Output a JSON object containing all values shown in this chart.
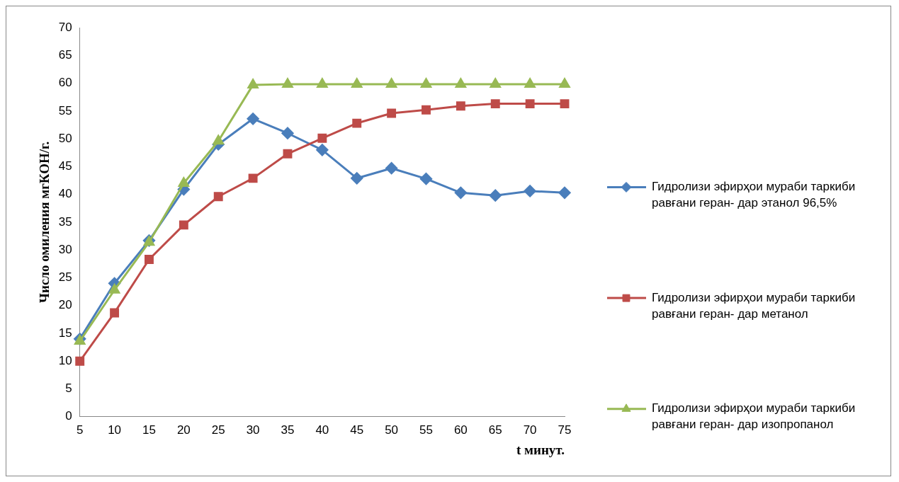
{
  "chart_data": {
    "type": "line",
    "ylabel": "Число омиления мгКОН/г.",
    "xlabel": "t минут.",
    "categories": [
      "5",
      "10",
      "15",
      "20",
      "25",
      "30",
      "35",
      "40",
      "45",
      "50",
      "55",
      "60",
      "65",
      "70",
      "75"
    ],
    "ylim": [
      0,
      70
    ],
    "yticks": [
      0,
      5,
      10,
      15,
      20,
      25,
      30,
      35,
      40,
      45,
      50,
      55,
      60,
      65,
      70
    ],
    "grid": false,
    "legend": "right",
    "series": [
      {
        "name": "Гидролизи эфирҳои мураби таркиби равғани геран- дар этанол 96,5%",
        "color": "#4a7ebb",
        "marker": "diamond",
        "values": [
          14,
          24,
          31.7,
          40.9,
          49,
          53.6,
          51,
          48,
          42.9,
          44.7,
          42.8,
          40.3,
          39.8,
          40.6,
          40.3
        ]
      },
      {
        "name": "Гидролизи эфирҳои мураби таркиби равғани геран- дар метанол",
        "color": "#be4b48",
        "marker": "square",
        "values": [
          10,
          18.7,
          28.3,
          34.5,
          39.6,
          42.9,
          47.3,
          50.1,
          52.8,
          54.6,
          55.2,
          55.9,
          56.3,
          56.3,
          56.3
        ]
      },
      {
        "name": "Гидролизи эфирҳои мураби таркиби равғани геран- дар изопропанол",
        "color": "#98b954",
        "marker": "triangle",
        "values": [
          13.6,
          22.8,
          31.4,
          42,
          49.6,
          59.7,
          59.8,
          59.8,
          59.8,
          59.8,
          59.8,
          59.8,
          59.8,
          59.8,
          59.8
        ]
      }
    ]
  }
}
